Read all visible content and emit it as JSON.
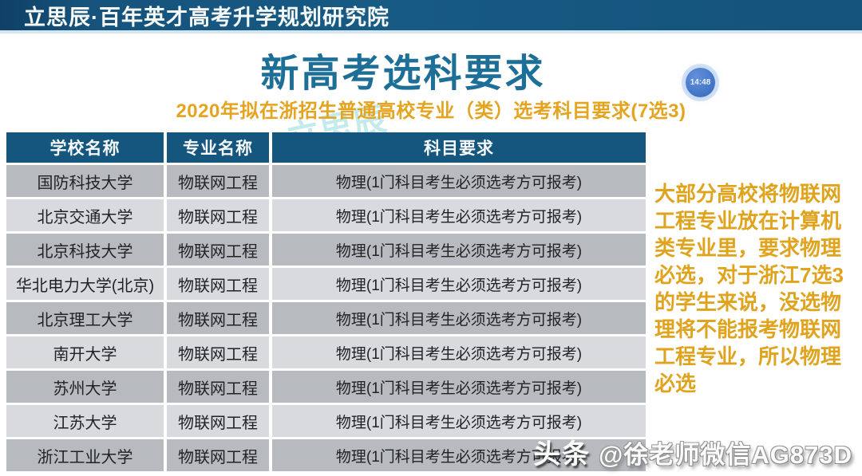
{
  "header": {
    "org_title": "立思辰·百年英才高考升学规划研究院"
  },
  "page": {
    "title": "新高考选科要求",
    "subtitle": "2020年拟在浙招生普通高校专业（类）选考科目要求(7选3)"
  },
  "clock_badge": {
    "time": "14:48"
  },
  "table": {
    "columns": [
      "学校名称",
      "专业名称",
      "科目要求"
    ],
    "rows": [
      {
        "school": "国防科技大学",
        "major": "物联网工程",
        "requirement": "物理(1门科目考生必须选考方可报考)"
      },
      {
        "school": "北京交通大学",
        "major": "物联网工程",
        "requirement": "物理(1门科目考生必须选考方可报考)"
      },
      {
        "school": "北京科技大学",
        "major": "物联网工程",
        "requirement": "物理(1门科目考生必须选考方可报考)"
      },
      {
        "school": "华北电力大学(北京)",
        "major": "物联网工程",
        "requirement": "物理(1门科目考生必须选考方可报考)"
      },
      {
        "school": "北京理工大学",
        "major": "物联网工程",
        "requirement": "物理(1门科目考生必须选考方可报考)"
      },
      {
        "school": "南开大学",
        "major": "物联网工程",
        "requirement": "物理(1门科目考生必须选考方可报考)"
      },
      {
        "school": "苏州大学",
        "major": "物联网工程",
        "requirement": "物理(1门科目考生必须选考方可报考)"
      },
      {
        "school": "江苏大学",
        "major": "物联网工程",
        "requirement": "物理(1门科目考生必须选考方可报考)"
      },
      {
        "school": "浙江工业大学",
        "major": "物联网工程",
        "requirement": "物理(1门科目考生必须选考方可报考)"
      }
    ]
  },
  "note": {
    "text": "大部分高校将物联网工程专业放在计算机类专业里，要求物理必选，对于浙江7选3的学生来说，没选物理将不能报考物联网工程专业，所以物理必选"
  },
  "watermarks": {
    "brand_teal": "立思辰",
    "brand_pink": "百年英才",
    "footer_platform": "头条",
    "footer_handle": "@徐老师微信AG873D"
  },
  "colors": {
    "topbar_blue": "#175a84",
    "title_blue": "#1e6f97",
    "accent_orange": "#e0a31e",
    "table_header_blue": "#15567e",
    "row_dark_gray": "#b7bbbf",
    "row_light_gray": "#d8dadd",
    "clock_bubble_blue": "#4578ca"
  }
}
